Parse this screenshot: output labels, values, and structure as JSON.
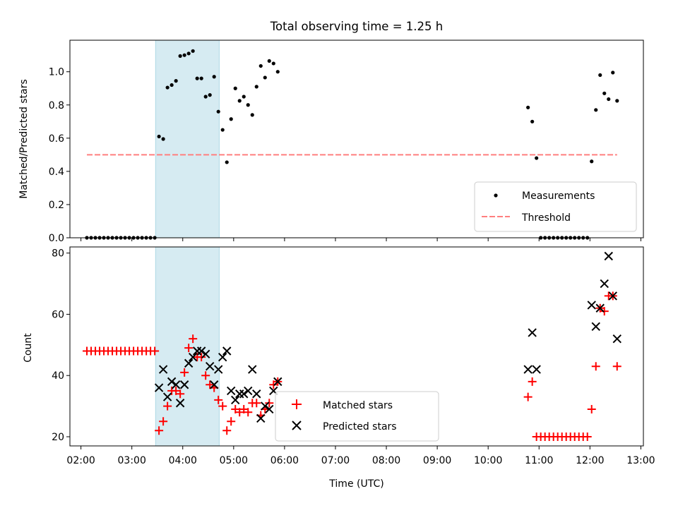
{
  "title": "Total observing time = 1.25 h",
  "colors": {
    "highlight": "#add8e6",
    "measurement": "#000000",
    "threshold": "#ff7f7f",
    "matched": "#ff0000",
    "predicted": "#000000"
  },
  "chart_data": [
    {
      "type": "scatter",
      "ylabel": "Matched/Predicted stars",
      "xlabel": "",
      "xlim": [
        "01:47",
        "13:03"
      ],
      "ylim": [
        0,
        1.19
      ],
      "yticks": [
        "0.0",
        "0.2",
        "0.4",
        "0.6",
        "0.8",
        "1.0"
      ],
      "highlight_span": [
        "03:28",
        "04:43"
      ],
      "legend_position": "lower-right",
      "series": [
        {
          "name": "Measurements",
          "marker": "dot",
          "points": [
            [
              "02:07",
              0
            ],
            [
              "02:12",
              0
            ],
            [
              "02:17",
              0
            ],
            [
              "02:22",
              0
            ],
            [
              "02:27",
              0
            ],
            [
              "02:32",
              0
            ],
            [
              "02:37",
              0
            ],
            [
              "02:42",
              0
            ],
            [
              "02:47",
              0
            ],
            [
              "02:52",
              0
            ],
            [
              "02:57",
              0
            ],
            [
              "03:02",
              0
            ],
            [
              "03:07",
              0
            ],
            [
              "03:12",
              0
            ],
            [
              "03:17",
              0
            ],
            [
              "03:22",
              0
            ],
            [
              "03:27",
              0
            ],
            [
              "03:32",
              0.61
            ],
            [
              "03:37",
              0.595
            ],
            [
              "03:42",
              0.905
            ],
            [
              "03:47",
              0.92
            ],
            [
              "03:52",
              0.945
            ],
            [
              "03:57",
              1.095
            ],
            [
              "04:02",
              1.1
            ],
            [
              "04:07",
              1.11
            ],
            [
              "04:12",
              1.125
            ],
            [
              "04:17",
              0.96
            ],
            [
              "04:22",
              0.96
            ],
            [
              "04:27",
              0.85
            ],
            [
              "04:32",
              0.86
            ],
            [
              "04:37",
              0.97
            ],
            [
              "04:42",
              0.76
            ],
            [
              "04:47",
              0.65
            ],
            [
              "04:52",
              0.455
            ],
            [
              "04:57",
              0.715
            ],
            [
              "05:02",
              0.9
            ],
            [
              "05:07",
              0.825
            ],
            [
              "05:12",
              0.85
            ],
            [
              "05:17",
              0.8
            ],
            [
              "05:22",
              0.74
            ],
            [
              "05:27",
              0.91
            ],
            [
              "05:32",
              1.035
            ],
            [
              "05:37",
              0.965
            ],
            [
              "05:42",
              1.065
            ],
            [
              "05:47",
              1.05
            ],
            [
              "05:52",
              1.0
            ],
            [
              "10:47",
              0.785
            ],
            [
              "10:52",
              0.7
            ],
            [
              "10:57",
              0.48
            ],
            [
              "11:02",
              0
            ],
            [
              "11:07",
              0
            ],
            [
              "11:12",
              0
            ],
            [
              "11:17",
              0
            ],
            [
              "11:22",
              0
            ],
            [
              "11:27",
              0
            ],
            [
              "11:32",
              0
            ],
            [
              "11:37",
              0
            ],
            [
              "11:42",
              0
            ],
            [
              "11:47",
              0
            ],
            [
              "11:52",
              0
            ],
            [
              "11:57",
              0
            ],
            [
              "12:02",
              0.46
            ],
            [
              "12:07",
              0.77
            ],
            [
              "12:12",
              0.98
            ],
            [
              "12:17",
              0.87
            ],
            [
              "12:22",
              0.835
            ],
            [
              "12:27",
              0.995
            ],
            [
              "12:32",
              0.825
            ]
          ]
        },
        {
          "name": "Threshold",
          "style": "dashed",
          "points": [
            [
              "02:07",
              0.5
            ],
            [
              "12:32",
              0.5
            ]
          ]
        }
      ]
    },
    {
      "type": "scatter",
      "ylabel": "Count",
      "xlabel": "Time (UTC)",
      "xlim": [
        "01:47",
        "13:03"
      ],
      "ylim": [
        17,
        82
      ],
      "yticks": [
        "20",
        "40",
        "60",
        "80"
      ],
      "xticks": [
        "02:00",
        "03:00",
        "04:00",
        "05:00",
        "06:00",
        "07:00",
        "08:00",
        "09:00",
        "10:00",
        "11:00",
        "12:00",
        "13:00"
      ],
      "highlight_span": [
        "03:28",
        "04:43"
      ],
      "legend_position": "lower-center",
      "series": [
        {
          "name": "Matched stars",
          "marker": "plus",
          "points": [
            [
              "02:07",
              48
            ],
            [
              "02:12",
              48
            ],
            [
              "02:17",
              48
            ],
            [
              "02:22",
              48
            ],
            [
              "02:27",
              48
            ],
            [
              "02:32",
              48
            ],
            [
              "02:37",
              48
            ],
            [
              "02:42",
              48
            ],
            [
              "02:47",
              48
            ],
            [
              "02:52",
              48
            ],
            [
              "02:57",
              48
            ],
            [
              "03:02",
              48
            ],
            [
              "03:07",
              48
            ],
            [
              "03:12",
              48
            ],
            [
              "03:17",
              48
            ],
            [
              "03:22",
              48
            ],
            [
              "03:27",
              48
            ],
            [
              "03:32",
              22
            ],
            [
              "03:37",
              25
            ],
            [
              "03:42",
              30
            ],
            [
              "03:47",
              35
            ],
            [
              "03:52",
              35
            ],
            [
              "03:57",
              34
            ],
            [
              "04:02",
              41
            ],
            [
              "04:07",
              49
            ],
            [
              "04:12",
              52
            ],
            [
              "04:17",
              46
            ],
            [
              "04:22",
              46
            ],
            [
              "04:27",
              40
            ],
            [
              "04:32",
              37
            ],
            [
              "04:37",
              36
            ],
            [
              "04:42",
              32
            ],
            [
              "04:47",
              30
            ],
            [
              "04:52",
              22
            ],
            [
              "04:57",
              25
            ],
            [
              "05:02",
              29
            ],
            [
              "05:07",
              28
            ],
            [
              "05:12",
              29
            ],
            [
              "05:17",
              28
            ],
            [
              "05:22",
              31
            ],
            [
              "05:27",
              31
            ],
            [
              "05:32",
              27
            ],
            [
              "05:37",
              29
            ],
            [
              "05:42",
              31
            ],
            [
              "05:47",
              37
            ],
            [
              "05:52",
              38
            ],
            [
              "10:47",
              33
            ],
            [
              "10:52",
              38
            ],
            [
              "10:57",
              20
            ],
            [
              "11:02",
              20
            ],
            [
              "11:07",
              20
            ],
            [
              "11:12",
              20
            ],
            [
              "11:17",
              20
            ],
            [
              "11:22",
              20
            ],
            [
              "11:27",
              20
            ],
            [
              "11:32",
              20
            ],
            [
              "11:37",
              20
            ],
            [
              "11:42",
              20
            ],
            [
              "11:47",
              20
            ],
            [
              "11:52",
              20
            ],
            [
              "11:57",
              20
            ],
            [
              "12:02",
              29
            ],
            [
              "12:07",
              43
            ],
            [
              "12:12",
              62
            ],
            [
              "12:17",
              61
            ],
            [
              "12:22",
              66
            ],
            [
              "12:27",
              66
            ],
            [
              "12:32",
              43
            ]
          ]
        },
        {
          "name": "Predicted stars",
          "marker": "x",
          "points": [
            [
              "03:32",
              36
            ],
            [
              "03:37",
              42
            ],
            [
              "03:42",
              33
            ],
            [
              "03:47",
              38
            ],
            [
              "03:52",
              37
            ],
            [
              "03:57",
              31
            ],
            [
              "04:02",
              37
            ],
            [
              "04:07",
              44
            ],
            [
              "04:12",
              46
            ],
            [
              "04:17",
              48
            ],
            [
              "04:22",
              48
            ],
            [
              "04:27",
              47
            ],
            [
              "04:32",
              43
            ],
            [
              "04:37",
              37
            ],
            [
              "04:42",
              42
            ],
            [
              "04:47",
              46
            ],
            [
              "04:52",
              48
            ],
            [
              "04:57",
              35
            ],
            [
              "05:02",
              32
            ],
            [
              "05:07",
              34
            ],
            [
              "05:12",
              34
            ],
            [
              "05:17",
              35
            ],
            [
              "05:22",
              42
            ],
            [
              "05:27",
              34
            ],
            [
              "05:32",
              26
            ],
            [
              "05:37",
              30
            ],
            [
              "05:42",
              29
            ],
            [
              "05:47",
              35
            ],
            [
              "05:52",
              38
            ],
            [
              "10:47",
              42
            ],
            [
              "10:52",
              54
            ],
            [
              "10:57",
              42
            ],
            [
              "12:02",
              63
            ],
            [
              "12:07",
              56
            ],
            [
              "12:12",
              62
            ],
            [
              "12:17",
              70
            ],
            [
              "12:22",
              79
            ],
            [
              "12:27",
              66
            ],
            [
              "12:32",
              52
            ]
          ]
        }
      ]
    }
  ]
}
